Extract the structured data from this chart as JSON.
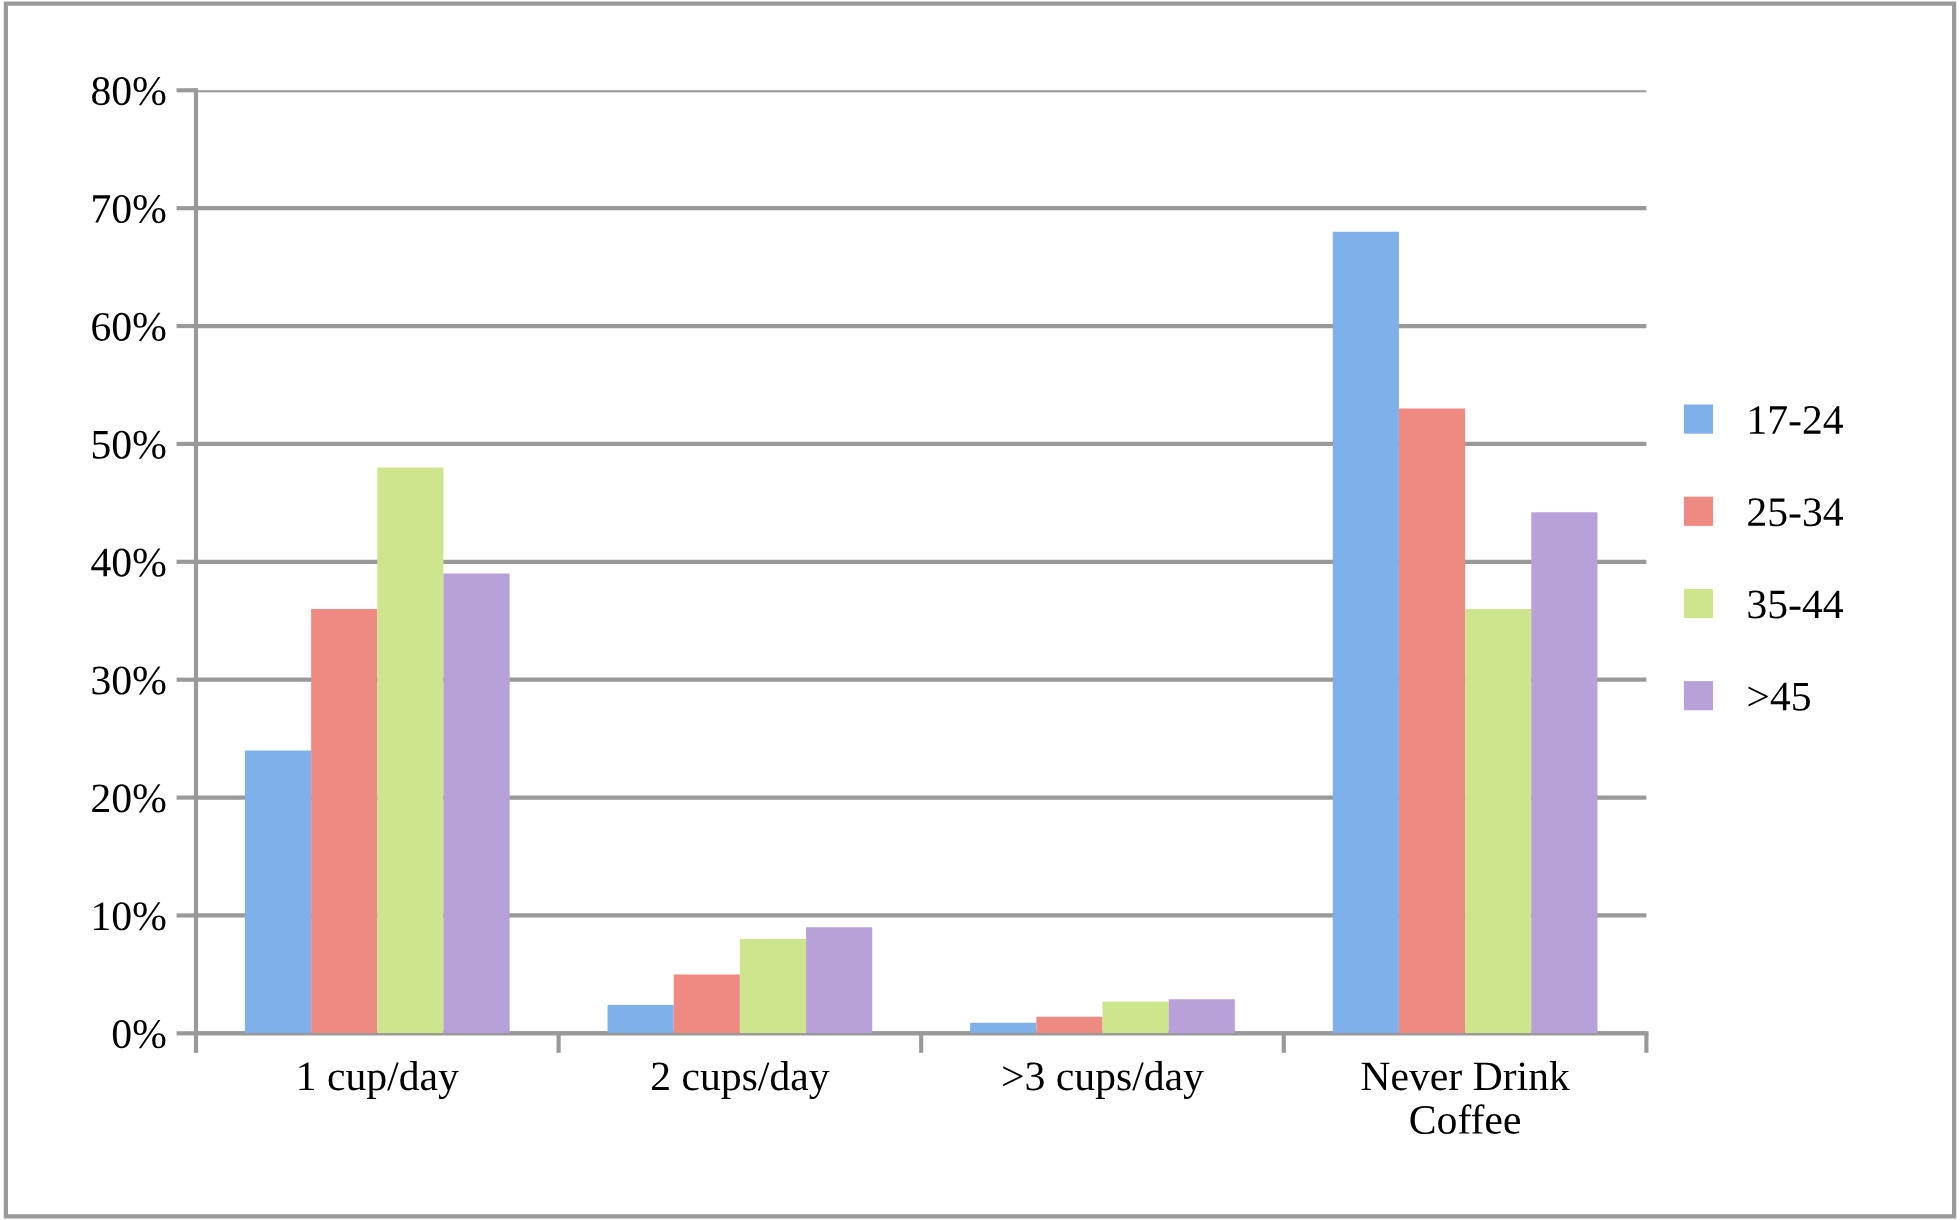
{
  "chart_data": {
    "type": "bar",
    "categories": [
      "1 cup/day",
      "2 cups/day",
      ">3 cups/day",
      "Never Drink\nCoffee"
    ],
    "series": [
      {
        "name": "17-24",
        "color": "#7fb0ea",
        "values": [
          24,
          2.4,
          0.9,
          68
        ]
      },
      {
        "name": "25-34",
        "color": "#ef8a82",
        "values": [
          36,
          5,
          1.4,
          53
        ]
      },
      {
        "name": "35-44",
        "color": "#cde58c",
        "values": [
          48,
          8,
          2.7,
          36
        ]
      },
      {
        "name": ">45",
        "color": "#b8a0d8",
        "values": [
          39,
          9,
          2.9,
          44.2
        ]
      }
    ],
    "ylim": [
      0,
      80
    ],
    "yticks": [
      {
        "value": 0,
        "label": "0%"
      },
      {
        "value": 10,
        "label": "10%"
      },
      {
        "value": 20,
        "label": "20%"
      },
      {
        "value": 30,
        "label": "30%"
      },
      {
        "value": 40,
        "label": "40%"
      },
      {
        "value": 50,
        "label": "50%"
      },
      {
        "value": 60,
        "label": "60%"
      },
      {
        "value": 70,
        "label": "70%"
      },
      {
        "value": 80,
        "label": "80%"
      }
    ],
    "grid": "y",
    "legend": "right"
  }
}
